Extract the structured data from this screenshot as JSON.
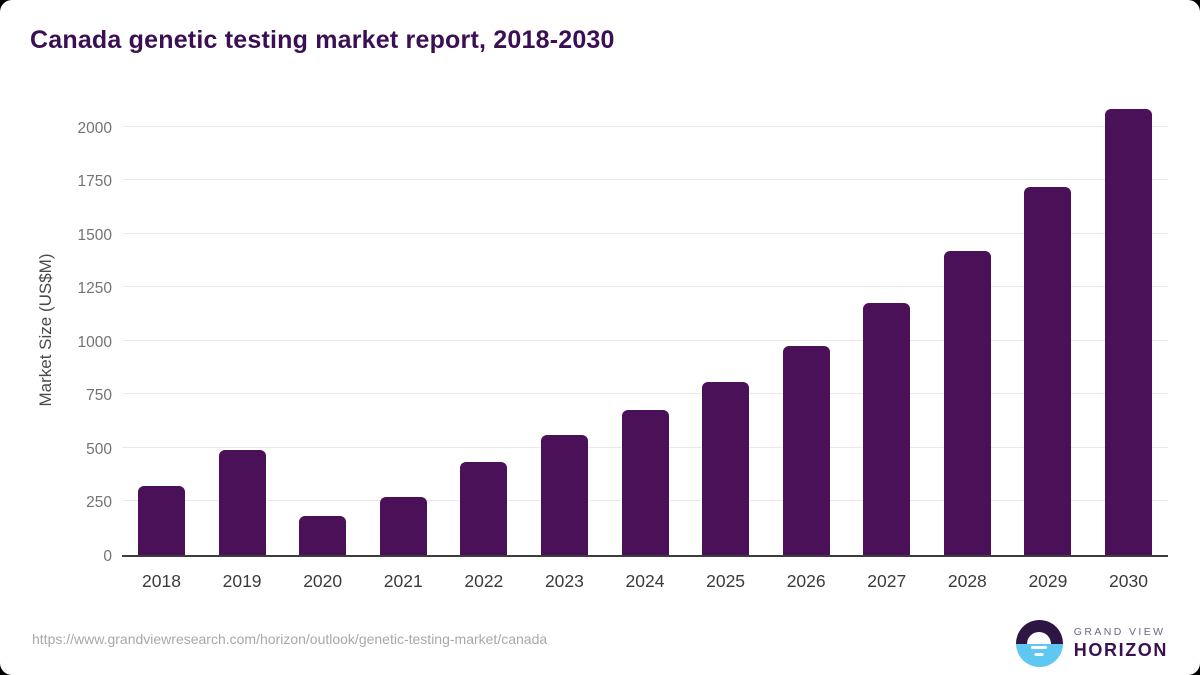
{
  "title": "Canada genetic testing market report, 2018-2030",
  "source_url": "https://www.grandviewresearch.com/horizon/outlook/genetic-testing-market/canada",
  "branding": {
    "name_top": "GRAND VIEW",
    "name_bottom": "HORIZON",
    "icon": "horizon-sun-icon"
  },
  "colors": {
    "title_purple": "#3a0f54",
    "bar_purple": "#4a1158",
    "logo_dark_purple": "#2d1544",
    "logo_sky_blue": "#5ec7f2",
    "gridline_gray": "#e9e9e9"
  },
  "chart_data": {
    "type": "bar",
    "title": "Canada genetic testing market report, 2018-2030",
    "categories": [
      "2018",
      "2019",
      "2020",
      "2021",
      "2022",
      "2023",
      "2024",
      "2025",
      "2026",
      "2027",
      "2028",
      "2029",
      "2030"
    ],
    "values": [
      320,
      490,
      180,
      270,
      435,
      560,
      675,
      810,
      975,
      1175,
      1420,
      1720,
      2085
    ],
    "xlabel": "",
    "ylabel": "Market Size (US$M)",
    "yticks": [
      0,
      250,
      500,
      750,
      1000,
      1250,
      1500,
      1750,
      2000
    ],
    "ylim": [
      0,
      2125
    ],
    "grid": true,
    "legend": false,
    "bar_color": "#4a1158"
  }
}
